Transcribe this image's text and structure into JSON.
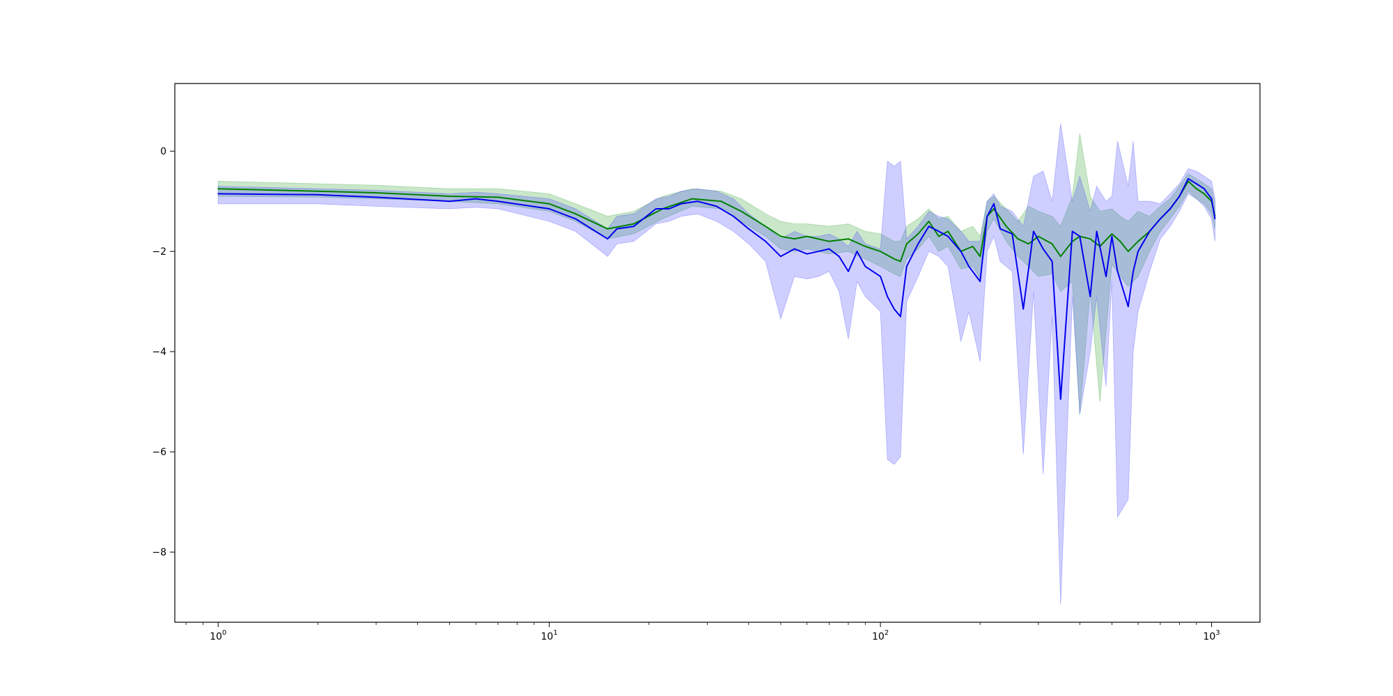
{
  "chart_data": {
    "type": "line",
    "title": "",
    "xlabel": "",
    "ylabel": "",
    "x_scale": "log",
    "xlim": [
      0.74,
      1400
    ],
    "ylim": [
      -9.4,
      1.35
    ],
    "grid": false,
    "legend": "none",
    "x_ticks": [
      {
        "value": 1,
        "base": "10",
        "exp": "0"
      },
      {
        "value": 10,
        "base": "10",
        "exp": "1"
      },
      {
        "value": 100,
        "base": "10",
        "exp": "2"
      },
      {
        "value": 1000,
        "base": "10",
        "exp": "3"
      }
    ],
    "y_ticks": [
      {
        "value": 0,
        "label": "0"
      },
      {
        "value": -2,
        "label": "−2"
      },
      {
        "value": -4,
        "label": "−4"
      },
      {
        "value": -6,
        "label": "−6"
      },
      {
        "value": -8,
        "label": "−8"
      }
    ],
    "series": [
      {
        "color": "#008000",
        "band_color": "#2ca02c",
        "x": [
          1,
          2,
          3,
          5,
          7,
          10,
          12,
          15,
          18,
          22,
          27,
          33,
          38,
          45,
          50,
          55,
          60,
          70,
          80,
          90,
          100,
          110,
          115,
          120,
          130,
          140,
          150,
          160,
          175,
          190,
          200,
          210,
          220,
          240,
          260,
          280,
          300,
          330,
          350,
          380,
          400,
          430,
          460,
          500,
          530,
          560,
          600,
          650,
          700,
          750,
          800,
          850,
          900,
          950,
          1000,
          1024
        ],
        "y": [
          -0.75,
          -0.8,
          -0.83,
          -0.9,
          -0.92,
          -1.05,
          -1.25,
          -1.55,
          -1.45,
          -1.15,
          -0.95,
          -1.0,
          -1.2,
          -1.5,
          -1.7,
          -1.75,
          -1.7,
          -1.8,
          -1.75,
          -1.9,
          -2.0,
          -2.15,
          -2.2,
          -1.85,
          -1.65,
          -1.4,
          -1.7,
          -1.6,
          -2.0,
          -1.9,
          -2.1,
          -1.3,
          -1.15,
          -1.5,
          -1.75,
          -1.85,
          -1.7,
          -1.85,
          -2.1,
          -1.8,
          -1.7,
          -1.75,
          -1.9,
          -1.65,
          -1.8,
          -2.0,
          -1.8,
          -1.6,
          -1.35,
          -1.15,
          -0.9,
          -0.6,
          -0.75,
          -0.85,
          -1.0,
          -1.3
        ],
        "upper": [
          -0.6,
          -0.65,
          -0.68,
          -0.75,
          -0.75,
          -0.85,
          -1.05,
          -1.3,
          -1.2,
          -0.9,
          -0.75,
          -0.8,
          -0.95,
          -1.25,
          -1.4,
          -1.45,
          -1.45,
          -1.5,
          -1.45,
          -1.6,
          -1.65,
          -1.8,
          -1.8,
          -1.5,
          -1.35,
          -1.15,
          -1.35,
          -1.3,
          -1.6,
          -1.5,
          -1.7,
          -1.0,
          -0.9,
          -1.15,
          -1.4,
          -1.1,
          -1.2,
          -1.3,
          -1.5,
          -0.9,
          0.35,
          -0.9,
          -1.2,
          -1.15,
          -1.3,
          -1.4,
          -1.2,
          -1.3,
          -1.1,
          -0.95,
          -0.7,
          -0.45,
          -0.55,
          -0.65,
          -0.75,
          -1.05
        ],
        "lower": [
          -0.9,
          -0.92,
          -0.95,
          -1.0,
          -1.05,
          -1.2,
          -1.4,
          -1.75,
          -1.65,
          -1.35,
          -1.1,
          -1.15,
          -1.4,
          -1.7,
          -1.95,
          -2.0,
          -1.95,
          -2.05,
          -2.0,
          -2.15,
          -2.3,
          -2.45,
          -2.5,
          -2.15,
          -1.95,
          -1.7,
          -2.0,
          -1.9,
          -2.35,
          -2.3,
          -2.55,
          -1.6,
          -1.35,
          -1.8,
          -2.1,
          -2.3,
          -2.5,
          -2.45,
          -2.8,
          -2.6,
          -5.25,
          -2.8,
          -5.0,
          -2.25,
          -2.5,
          -2.7,
          -2.5,
          -2.0,
          -1.6,
          -1.35,
          -1.1,
          -0.8,
          -0.95,
          -1.05,
          -1.25,
          -1.55
        ]
      },
      {
        "color": "#0000ee",
        "band_color": "#3f3fff",
        "x": [
          1,
          2,
          3,
          5,
          6,
          7,
          10,
          12,
          15,
          16,
          18,
          21,
          23,
          25,
          28,
          32,
          36,
          40,
          45,
          50,
          55,
          60,
          65,
          70,
          75,
          80,
          85,
          90,
          100,
          105,
          110,
          115,
          120,
          130,
          140,
          150,
          160,
          175,
          185,
          200,
          210,
          220,
          230,
          250,
          270,
          290,
          310,
          330,
          350,
          380,
          400,
          430,
          450,
          480,
          500,
          520,
          560,
          580,
          600,
          650,
          700,
          750,
          800,
          850,
          900,
          950,
          1000,
          1024
        ],
        "y": [
          -0.85,
          -0.87,
          -0.92,
          -1.0,
          -0.95,
          -1.0,
          -1.15,
          -1.35,
          -1.75,
          -1.55,
          -1.5,
          -1.15,
          -1.15,
          -1.05,
          -1.0,
          -1.1,
          -1.3,
          -1.55,
          -1.8,
          -2.1,
          -1.95,
          -2.05,
          -2.0,
          -1.95,
          -2.1,
          -2.4,
          -2.0,
          -2.3,
          -2.5,
          -2.9,
          -3.15,
          -3.3,
          -2.3,
          -1.85,
          -1.5,
          -1.6,
          -1.7,
          -2.0,
          -2.3,
          -2.6,
          -1.3,
          -1.05,
          -1.55,
          -1.65,
          -3.15,
          -1.6,
          -1.95,
          -2.2,
          -4.95,
          -1.6,
          -1.7,
          -2.9,
          -1.6,
          -2.5,
          -1.7,
          -2.4,
          -3.1,
          -2.4,
          -2.0,
          -1.6,
          -1.35,
          -1.15,
          -0.9,
          -0.55,
          -0.65,
          -0.75,
          -0.95,
          -1.35
        ],
        "upper": [
          -0.7,
          -0.75,
          -0.78,
          -0.85,
          -0.82,
          -0.85,
          -0.95,
          -1.15,
          -1.55,
          -1.3,
          -1.25,
          -0.95,
          -0.9,
          -0.8,
          -0.75,
          -0.8,
          -0.95,
          -1.25,
          -1.5,
          -1.75,
          -1.6,
          -1.7,
          -1.7,
          -1.65,
          -1.75,
          -1.9,
          -1.6,
          -1.85,
          -1.95,
          -0.2,
          -0.3,
          -0.2,
          -1.75,
          -1.5,
          -1.2,
          -1.3,
          -1.35,
          -1.6,
          -1.8,
          -1.8,
          -1.0,
          -0.85,
          -1.1,
          -1.2,
          -1.5,
          -0.5,
          -0.4,
          -1.0,
          0.55,
          -1.0,
          -0.5,
          -1.2,
          -0.7,
          -1.0,
          -0.9,
          0.2,
          -0.7,
          0.2,
          -1.0,
          -1.0,
          -1.05,
          -0.85,
          -0.65,
          -0.35,
          -0.4,
          -0.5,
          -0.6,
          -0.95
        ],
        "lower": [
          -1.05,
          -1.05,
          -1.1,
          -1.15,
          -1.12,
          -1.15,
          -1.4,
          -1.6,
          -2.1,
          -1.85,
          -1.8,
          -1.45,
          -1.4,
          -1.3,
          -1.25,
          -1.4,
          -1.6,
          -1.85,
          -2.2,
          -3.35,
          -2.5,
          -2.55,
          -2.5,
          -2.4,
          -2.8,
          -3.75,
          -2.6,
          -2.9,
          -3.2,
          -6.15,
          -6.25,
          -6.1,
          -3.0,
          -2.5,
          -2.0,
          -2.1,
          -2.3,
          -3.8,
          -3.2,
          -4.2,
          -2.0,
          -1.7,
          -2.2,
          -2.4,
          -6.05,
          -2.8,
          -6.45,
          -3.3,
          -9.05,
          -2.9,
          -5.25,
          -4.0,
          -2.9,
          -4.7,
          -2.6,
          -7.3,
          -6.95,
          -4.0,
          -3.2,
          -2.4,
          -1.75,
          -1.5,
          -1.2,
          -0.85,
          -0.95,
          -1.1,
          -1.35,
          -1.8
        ]
      }
    ]
  }
}
